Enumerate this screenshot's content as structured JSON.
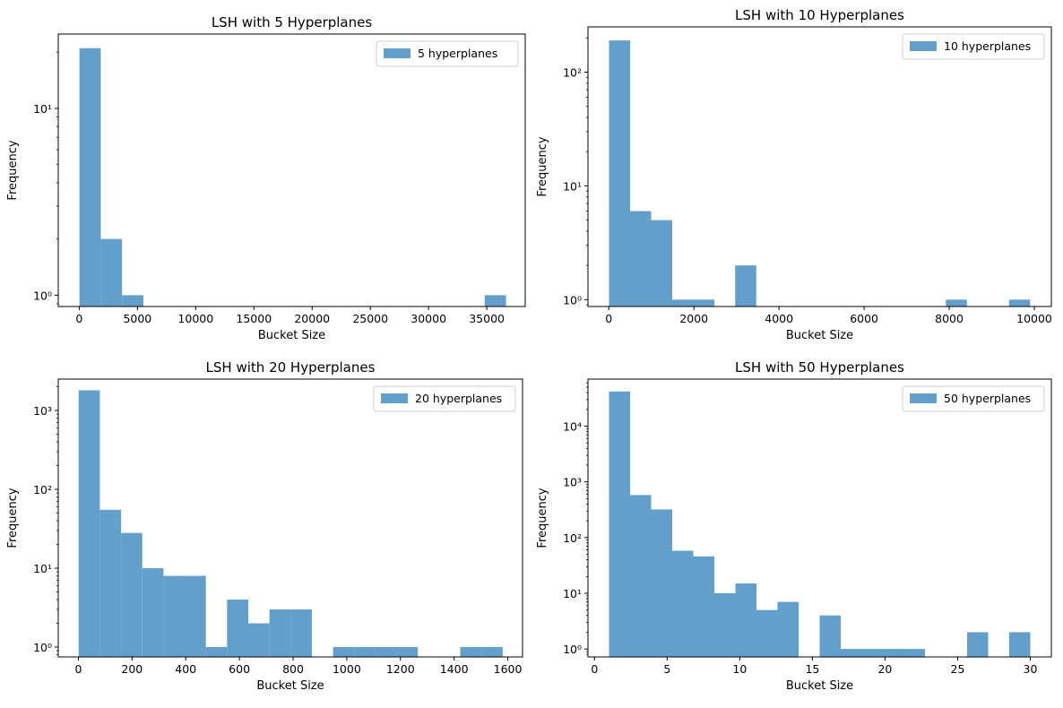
{
  "chart_data": [
    {
      "type": "bar",
      "title": "LSH with 5 Hyperplanes",
      "xlabel": "Bucket Size",
      "ylabel": "Frequency",
      "yscale": "log",
      "xlim": [
        -1800,
        38300
      ],
      "ylim": [
        0.87,
        25
      ],
      "xticks": [
        0,
        5000,
        10000,
        15000,
        20000,
        25000,
        30000,
        35000
      ],
      "xtick_labels": [
        "0",
        "5000",
        "10000",
        "15000",
        "20000",
        "25000",
        "30000",
        "35000"
      ],
      "yticks": [
        1,
        10
      ],
      "ytick_labels": [
        "10⁰",
        "10¹"
      ],
      "legend": "top-right",
      "color": "#639fcb",
      "series": [
        {
          "name": "5 hyperplanes",
          "bins": [
            [
              20,
              1850
            ],
            [
              1850,
              3680
            ],
            [
              3680,
              5510
            ],
            [
              34820,
              36650
            ]
          ],
          "values": [
            21,
            2,
            1,
            1
          ]
        }
      ]
    },
    {
      "type": "bar",
      "title": "LSH with 10 Hyperplanes",
      "xlabel": "Bucket Size",
      "ylabel": "Frequency",
      "yscale": "log",
      "xlim": [
        -490,
        10400
      ],
      "ylim": [
        0.87,
        250
      ],
      "xticks": [
        0,
        2000,
        4000,
        6000,
        8000,
        10000
      ],
      "xtick_labels": [
        "0",
        "2000",
        "4000",
        "6000",
        "8000",
        "10000"
      ],
      "yticks": [
        1,
        10,
        100
      ],
      "ytick_labels": [
        "10⁰",
        "10¹",
        "10²"
      ],
      "legend": "top-right",
      "color": "#639fcb",
      "series": [
        {
          "name": "10 hyperplanes",
          "bins": [
            [
              5,
              500
            ],
            [
              500,
              995
            ],
            [
              995,
              1490
            ],
            [
              1490,
              1985
            ],
            [
              1985,
              2480
            ],
            [
              2970,
              3465
            ],
            [
              7920,
              8415
            ],
            [
              9405,
              9900
            ]
          ],
          "values": [
            190,
            6,
            5,
            1,
            1,
            2,
            1,
            1
          ]
        }
      ]
    },
    {
      "type": "bar",
      "title": "LSH with 20 Hyperplanes",
      "xlabel": "Bucket Size",
      "ylabel": "Frequency",
      "yscale": "log",
      "xlim": [
        -75,
        1655
      ],
      "ylim": [
        0.75,
        2500
      ],
      "xticks": [
        0,
        200,
        400,
        600,
        800,
        1000,
        1200,
        1400,
        1600
      ],
      "xtick_labels": [
        "0",
        "200",
        "400",
        "600",
        "800",
        "1000",
        "1200",
        "1400",
        "1600"
      ],
      "yticks": [
        1,
        10,
        100,
        1000
      ],
      "ytick_labels": [
        "10⁰",
        "10¹",
        "10²",
        "10³"
      ],
      "legend": "top-right",
      "color": "#639fcb",
      "series": [
        {
          "name": "20 hyperplanes",
          "bins": [
            [
              1,
              80
            ],
            [
              80,
              159
            ],
            [
              159,
              238
            ],
            [
              238,
              317
            ],
            [
              317,
              396
            ],
            [
              396,
              475
            ],
            [
              475,
              554
            ],
            [
              554,
              633
            ],
            [
              633,
              712
            ],
            [
              712,
              791
            ],
            [
              791,
              870
            ],
            [
              949,
              1028
            ],
            [
              1028,
              1107
            ],
            [
              1107,
              1186
            ],
            [
              1186,
              1265
            ],
            [
              1423,
              1502
            ],
            [
              1502,
              1581
            ]
          ],
          "values": [
            1800,
            55,
            28,
            10,
            8,
            8,
            1,
            4,
            2,
            3,
            3,
            1,
            1,
            1,
            1,
            1,
            1
          ]
        }
      ]
    },
    {
      "type": "bar",
      "title": "LSH with 50 Hyperplanes",
      "xlabel": "Bucket Size",
      "ylabel": "Frequency",
      "yscale": "log",
      "xlim": [
        -0.45,
        31.45
      ],
      "ylim": [
        0.72,
        70000
      ],
      "xticks": [
        0,
        5,
        10,
        15,
        20,
        25,
        30
      ],
      "xtick_labels": [
        "0",
        "5",
        "10",
        "15",
        "20",
        "25",
        "30"
      ],
      "yticks": [
        1,
        10,
        100,
        1000,
        10000
      ],
      "ytick_labels": [
        "10⁰",
        "10¹",
        "10²",
        "10³",
        "10⁴"
      ],
      "legend": "top-right",
      "color": "#639fcb",
      "series": [
        {
          "name": "50 hyperplanes",
          "bins": [
            [
              1,
              2.45
            ],
            [
              2.45,
              3.9
            ],
            [
              3.9,
              5.35
            ],
            [
              5.35,
              6.8
            ],
            [
              6.8,
              8.25
            ],
            [
              8.25,
              9.7
            ],
            [
              9.7,
              11.15
            ],
            [
              11.15,
              12.6
            ],
            [
              12.6,
              14.05
            ],
            [
              15.5,
              16.95
            ],
            [
              16.95,
              18.4
            ],
            [
              18.4,
              19.85
            ],
            [
              19.85,
              21.3
            ],
            [
              21.3,
              22.75
            ],
            [
              25.65,
              27.1
            ],
            [
              28.55,
              30
            ]
          ],
          "values": [
            42000,
            580,
            320,
            58,
            46,
            10,
            15,
            5,
            7,
            4,
            1,
            1,
            1,
            1,
            2,
            2
          ]
        }
      ]
    }
  ]
}
